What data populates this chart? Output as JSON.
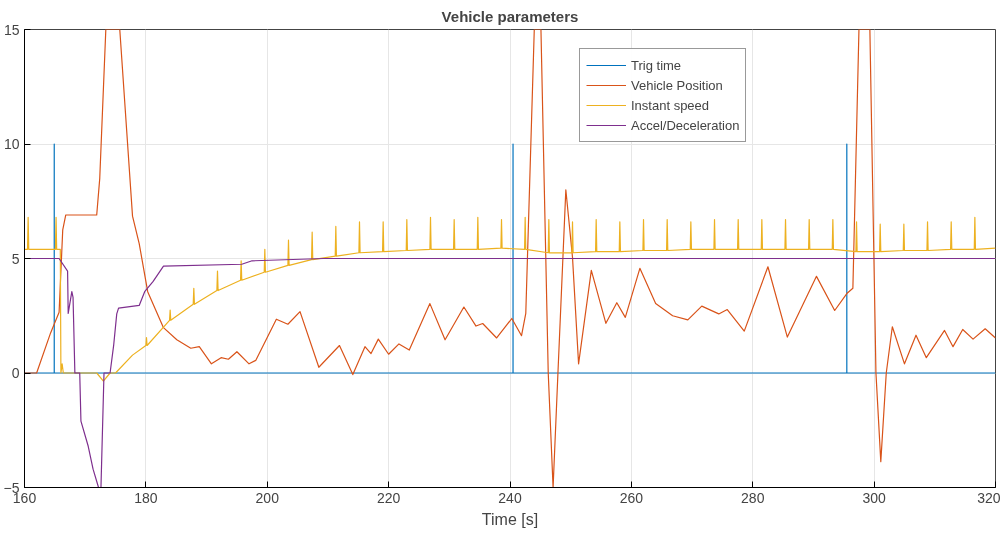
{
  "chart_data": {
    "type": "line",
    "title": "Vehicle parameters",
    "xlabel": "Time [s]",
    "xlim": [
      160,
      320
    ],
    "ylim": [
      -5,
      15
    ],
    "xticks": [
      160,
      180,
      200,
      220,
      240,
      260,
      280,
      300,
      320
    ],
    "yticks": [
      -5,
      0,
      5,
      10,
      15
    ],
    "grid": true,
    "legend": "top right",
    "line_style": "solid",
    "series": [
      {
        "name": "Trig time",
        "color": "#0072bd",
        "x": [
          160,
          164.9,
          164.9,
          164.9,
          240.5,
          240.5,
          240.5,
          295.5,
          295.5,
          295.5,
          320
        ],
        "values": [
          0,
          0,
          10,
          0,
          0,
          10,
          0,
          0,
          10,
          0,
          0
        ]
      },
      {
        "name": "Vehicle Position",
        "color": "#d95319",
        "x": [
          160,
          162,
          164.3,
          165.7,
          166.3,
          166.8,
          171.9,
          172.4,
          173.4,
          175.7,
          177.8,
          178.9,
          180.3,
          182.9,
          185.1,
          187.4,
          188.8,
          190.8,
          192.4,
          193.6,
          195,
          197,
          198.1,
          201.5,
          203.4,
          205.4,
          208.5,
          211.9,
          214.1,
          216.1,
          217.1,
          218.3,
          220,
          221.7,
          223.4,
          226.8,
          229.3,
          232.4,
          234.4,
          235.5,
          237.8,
          240.3,
          241.9,
          242.6,
          244,
          245.1,
          246.3,
          247.1,
          247.9,
          249.2,
          250.3,
          251.3,
          253.4,
          255.8,
          257.6,
          259,
          261.4,
          264,
          266.8,
          269.3,
          271.6,
          274.4,
          275.8,
          278.6,
          282.5,
          285.7,
          290.5,
          293.5,
          295.5,
          296.5,
          297.5,
          299.3,
          300.3,
          301.1,
          302,
          303,
          305,
          306.9,
          308.6,
          311.6,
          313,
          314.6,
          316.3,
          318.3,
          320
        ],
        "values": [
          0,
          0,
          1.75,
          2.65,
          6.25,
          6.9,
          6.9,
          8.5,
          15,
          15,
          6.85,
          5.65,
          3.55,
          1.98,
          1.45,
          1.08,
          1.15,
          0.4,
          0.67,
          0.6,
          0.93,
          0.4,
          0.55,
          2.35,
          2.13,
          2.68,
          0.25,
          1.2,
          -0.07,
          1.15,
          0.85,
          1.48,
          0.82,
          1.27,
          1.0,
          3.03,
          1.45,
          2.88,
          2.05,
          2.16,
          1.53,
          2.38,
          1.63,
          2.6,
          15,
          15,
          0,
          -5,
          0,
          8.0,
          5.05,
          0.4,
          4.48,
          2.17,
          3.07,
          2.43,
          4.57,
          3.03,
          2.5,
          2.32,
          2.92,
          2.58,
          2.77,
          1.83,
          4.64,
          1.57,
          4.22,
          2.73,
          3.47,
          3.7,
          15,
          15,
          0,
          -3.87,
          0,
          2.02,
          0.4,
          1.65,
          0.67,
          1.86,
          1.15,
          1.9,
          1.48,
          1.93,
          1.53
        ]
      },
      {
        "name": "Instant speed",
        "color": "#edb120",
        "x": [
          160,
          160.5,
          160.6,
          160.7,
          165.1,
          165.2,
          165.3,
          165.9,
          166.0,
          166.2,
          166.4,
          171.9,
          173.0,
          174.1,
          175.0,
          177.8,
          180.0,
          180.1,
          180.2,
          183.9,
          184.0,
          184.1,
          187.8,
          187.9,
          188.0,
          191.7,
          191.8,
          191.9,
          195.6,
          195.7,
          195.8,
          199.5,
          199.6,
          199.7,
          203.4,
          203.5,
          203.6,
          207.3,
          207.4,
          207.5,
          211.2,
          211.3,
          211.4,
          215.1,
          215.2,
          215.3,
          219.0,
          219.1,
          219.2,
          222.9,
          223.0,
          223.1,
          226.8,
          226.9,
          227.0,
          230.7,
          230.8,
          230.9,
          234.6,
          234.7,
          234.8,
          238.5,
          238.6,
          238.7,
          242.4,
          242.5,
          242.6,
          246.3,
          246.4,
          246.5,
          250.2,
          250.3,
          250.4,
          254.1,
          254.2,
          254.3,
          258.0,
          258.1,
          258.2,
          261.9,
          262.0,
          262.1,
          265.8,
          265.9,
          266.0,
          269.7,
          269.8,
          269.9,
          273.6,
          273.7,
          273.8,
          277.5,
          277.6,
          277.7,
          281.4,
          281.5,
          281.6,
          285.3,
          285.4,
          285.5,
          289.2,
          289.3,
          289.4,
          293.1,
          293.2,
          293.3,
          297.0,
          297.1,
          297.2,
          300.9,
          301.0,
          301.1,
          304.8,
          304.9,
          305.0,
          308.7,
          308.8,
          308.9,
          312.6,
          312.7,
          312.8,
          316.5,
          316.6,
          316.7,
          320
        ],
        "values": [
          5.4,
          5.4,
          6.8,
          5.4,
          5.4,
          6.8,
          5.4,
          5.4,
          0,
          0.4,
          0,
          0,
          -0.35,
          0,
          0,
          0.78,
          1.2,
          1.55,
          1.2,
          2.3,
          2.75,
          2.3,
          3.0,
          3.7,
          3.0,
          3.6,
          4.45,
          3.6,
          4.05,
          4.9,
          4.05,
          4.4,
          5.4,
          4.4,
          4.7,
          5.8,
          4.7,
          4.95,
          6.15,
          4.95,
          5.1,
          6.4,
          5.1,
          5.25,
          6.6,
          5.25,
          5.3,
          6.6,
          5.3,
          5.35,
          6.7,
          5.35,
          5.4,
          6.8,
          5.4,
          5.4,
          6.7,
          5.4,
          5.4,
          6.8,
          5.4,
          5.45,
          6.7,
          5.45,
          5.4,
          6.8,
          5.4,
          5.25,
          6.7,
          5.25,
          5.25,
          6.6,
          5.25,
          5.3,
          6.7,
          5.3,
          5.3,
          6.6,
          5.3,
          5.35,
          6.7,
          5.35,
          5.35,
          6.7,
          5.35,
          5.4,
          6.6,
          5.4,
          5.4,
          6.7,
          5.4,
          5.4,
          6.7,
          5.4,
          5.4,
          6.7,
          5.4,
          5.4,
          6.7,
          5.4,
          5.4,
          6.7,
          5.4,
          5.4,
          6.7,
          5.4,
          5.3,
          6.6,
          5.3,
          5.3,
          6.5,
          5.3,
          5.35,
          6.5,
          5.35,
          5.35,
          6.6,
          5.35,
          5.4,
          6.6,
          5.4,
          5.4,
          6.8,
          5.4,
          5.45
        ]
      },
      {
        "name": "Accel/Deceleration",
        "color": "#7e2f8e",
        "x": [
          160,
          165.7,
          167.1,
          167.2,
          167.8,
          168.0,
          168.3,
          169.1,
          169.3,
          170.5,
          171.3,
          172.2,
          172.6,
          173.1,
          174.1,
          174.7,
          175.2,
          175.5,
          178.9,
          179.8,
          181.2,
          182.9,
          195.8,
          197.5,
          209.3,
          320
        ],
        "values": [
          5.0,
          5.0,
          4.45,
          2.6,
          3.55,
          3.3,
          0,
          0,
          -2.1,
          -3.2,
          -4.2,
          -5,
          -5,
          0,
          0,
          1.23,
          2.58,
          2.83,
          2.95,
          3.55,
          4.0,
          4.67,
          4.75,
          4.9,
          5.0,
          5.0
        ]
      }
    ]
  }
}
